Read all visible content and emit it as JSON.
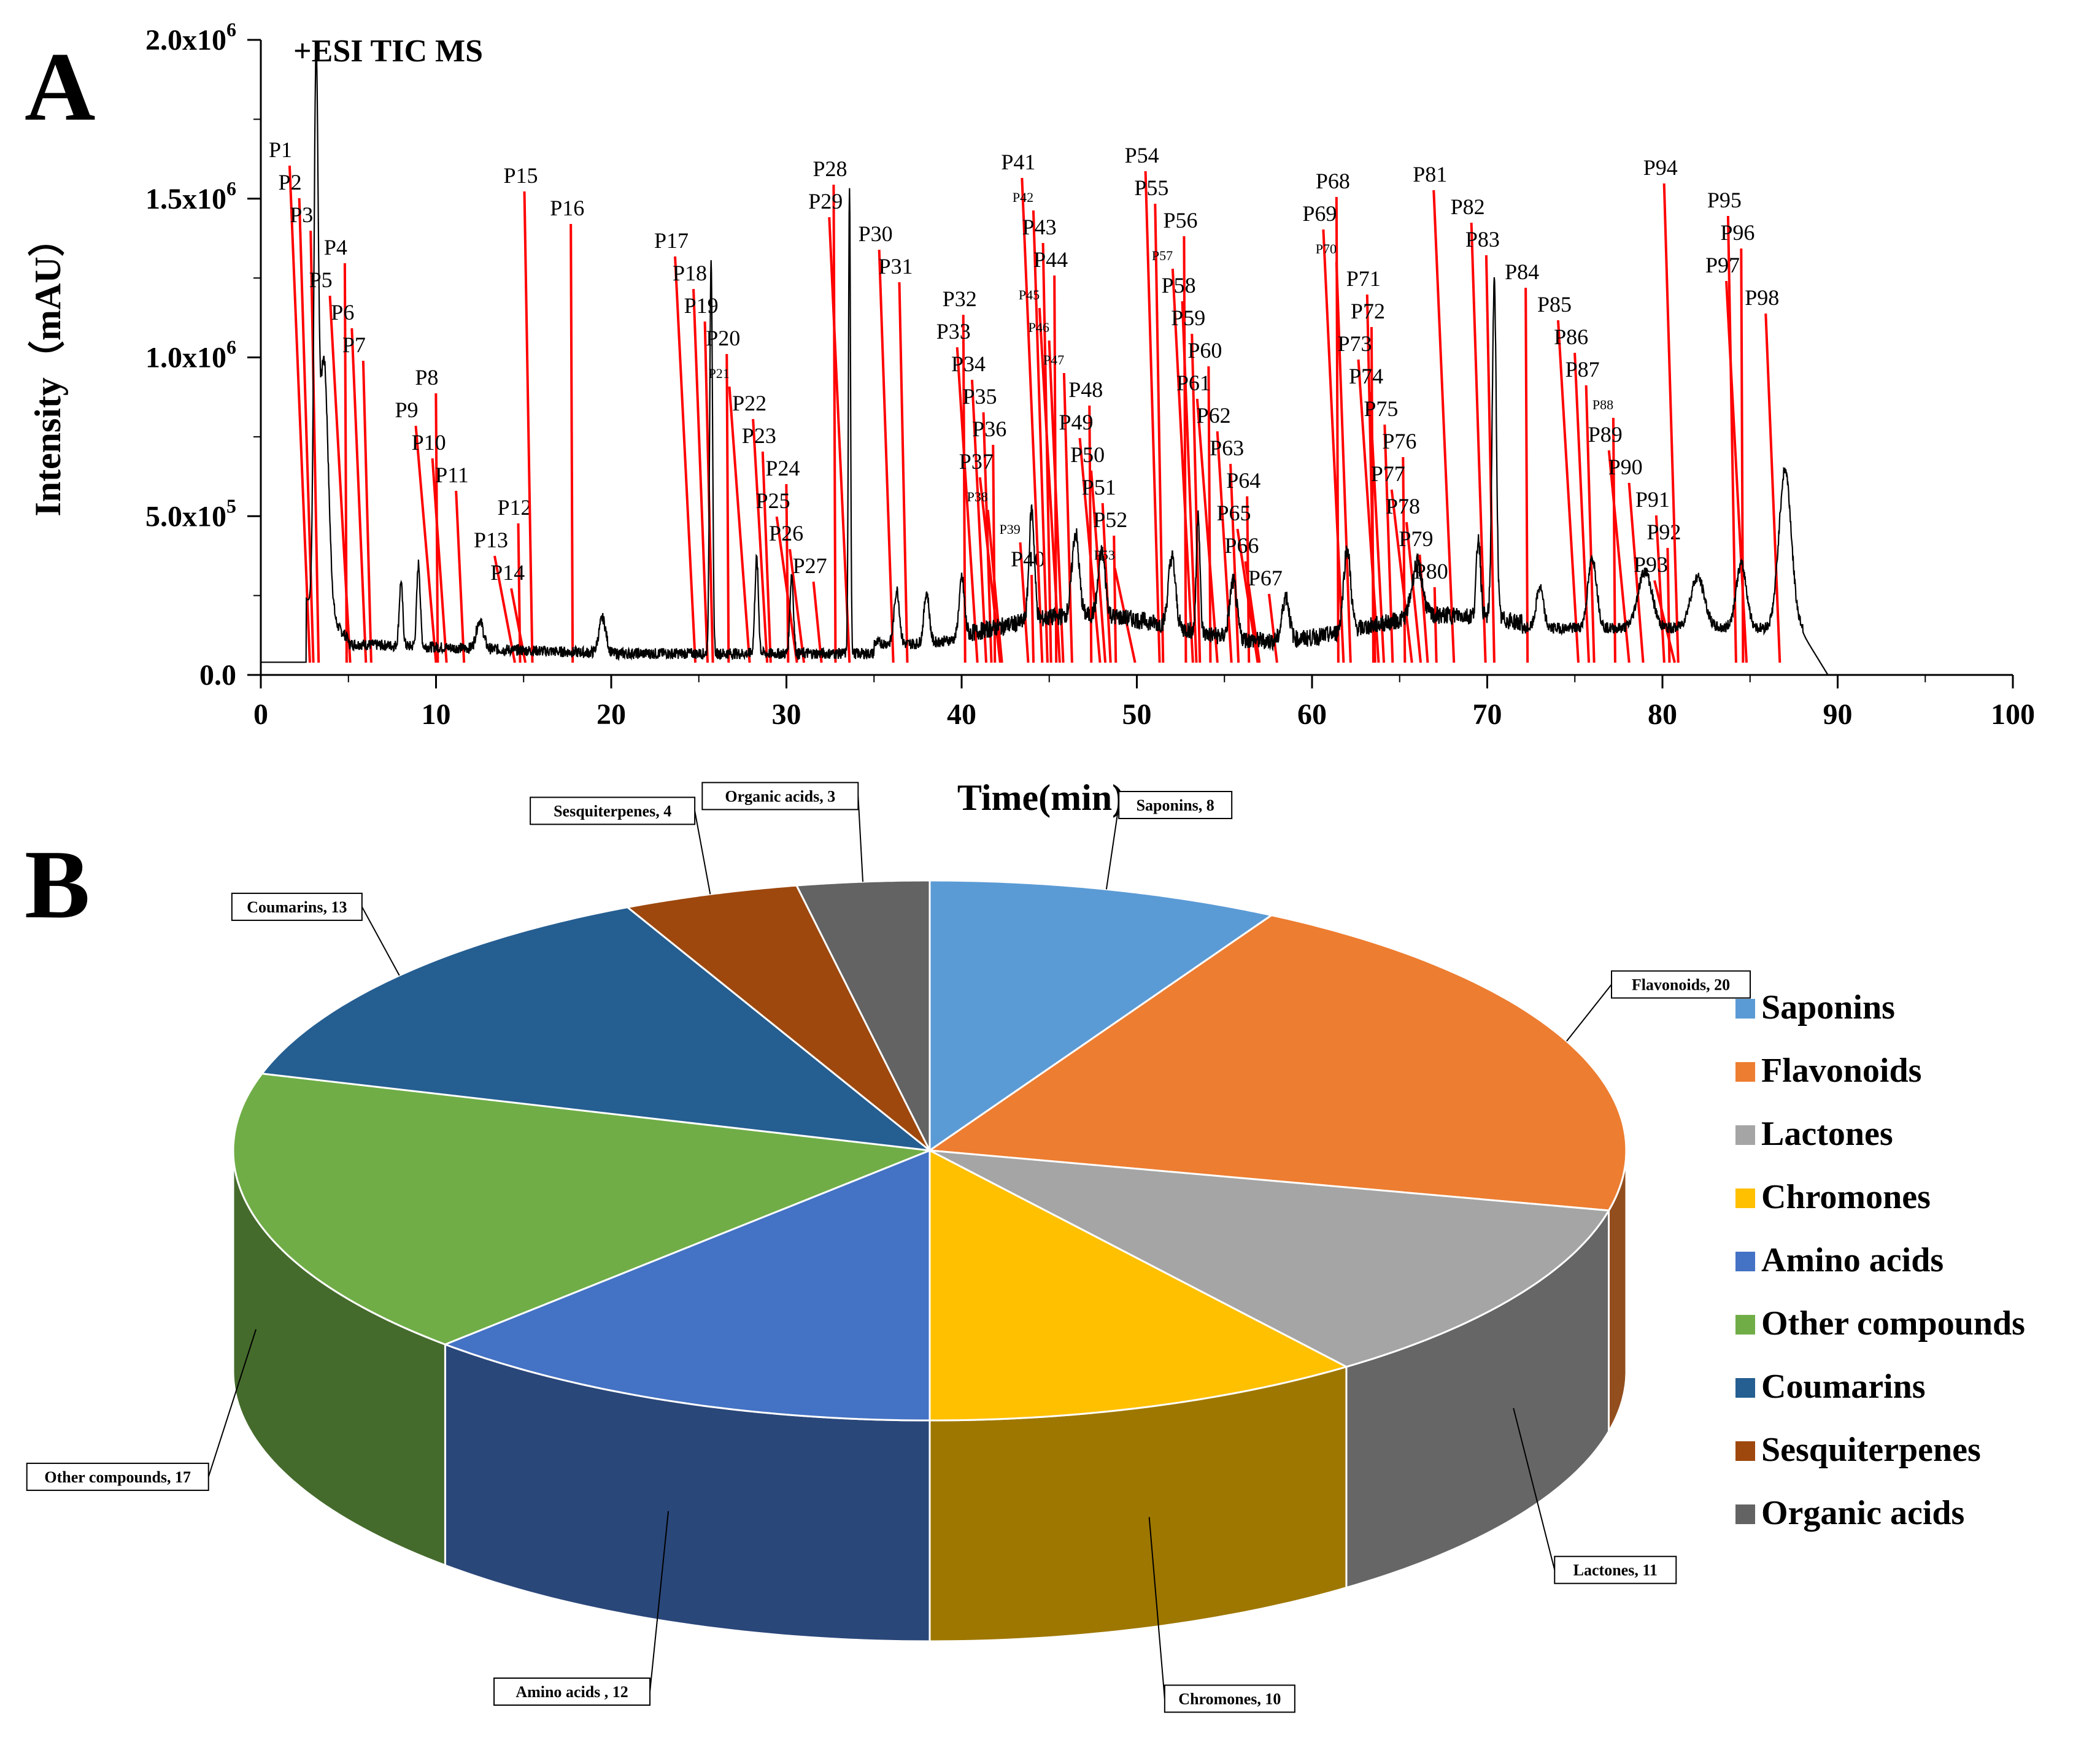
{
  "panels": {
    "a": "A",
    "b": "B"
  },
  "chart_data": [
    {
      "type": "line",
      "annotation": "+ESI TIC MS",
      "xlabel": "Time(min)",
      "ylabel": "Intensity（mAU）",
      "xlim": [
        0,
        100
      ],
      "ylim": [
        0,
        2000000
      ],
      "x_ticks": [
        "0",
        "10",
        "20",
        "30",
        "40",
        "50",
        "60",
        "70",
        "80",
        "90",
        "100"
      ],
      "y_ticks": [
        {
          "value": 0,
          "base": "0.0",
          "exp": ""
        },
        {
          "value": 500000,
          "base": "5.0x10",
          "exp": "5"
        },
        {
          "value": 1000000,
          "base": "1.0x10",
          "exp": "6"
        },
        {
          "value": 1500000,
          "base": "1.5x10",
          "exp": "6"
        },
        {
          "value": 2000000,
          "base": "2.0x10",
          "exp": "6"
        }
      ],
      "peaks": [
        {
          "label": "P1",
          "t": 2.8
        },
        {
          "label": "P2",
          "t": 3.0
        },
        {
          "label": "P3",
          "t": 3.3
        },
        {
          "label": "P4",
          "t": 4.9
        },
        {
          "label": "P5",
          "t": 5.1
        },
        {
          "label": "P6",
          "t": 6.0
        },
        {
          "label": "P7",
          "t": 6.3
        },
        {
          "label": "P8",
          "t": 10.1
        },
        {
          "label": "P9",
          "t": 10.0
        },
        {
          "label": "P10",
          "t": 10.6
        },
        {
          "label": "P11",
          "t": 11.6
        },
        {
          "label": "P12",
          "t": 14.8
        },
        {
          "label": "P13",
          "t": 14.5
        },
        {
          "label": "P14",
          "t": 15.1
        },
        {
          "label": "P15",
          "t": 15.5
        },
        {
          "label": "P16",
          "t": 17.8
        },
        {
          "label": "P17",
          "t": 24.8
        },
        {
          "label": "P18",
          "t": 25.5
        },
        {
          "label": "P19",
          "t": 25.8
        },
        {
          "label": "P20",
          "t": 26.7
        },
        {
          "label": "P21",
          "t": 27.9
        },
        {
          "label": "P22",
          "t": 28.9
        },
        {
          "label": "P23",
          "t": 29.1
        },
        {
          "label": "P24",
          "t": 30.1
        },
        {
          "label": "P25",
          "t": 30.6
        },
        {
          "label": "P26",
          "t": 31.0
        },
        {
          "label": "P27",
          "t": 32.0
        },
        {
          "label": "P28",
          "t": 32.8
        },
        {
          "label": "P29",
          "t": 33.6
        },
        {
          "label": "P30",
          "t": 36.1
        },
        {
          "label": "P31",
          "t": 36.9
        },
        {
          "label": "P32",
          "t": 40.2
        },
        {
          "label": "P33",
          "t": 40.9
        },
        {
          "label": "P34",
          "t": 41.4
        },
        {
          "label": "P35",
          "t": 41.7
        },
        {
          "label": "P36",
          "t": 41.9
        },
        {
          "label": "P37",
          "t": 42.2
        },
        {
          "label": "P38",
          "t": 42.3
        },
        {
          "label": "P39",
          "t": 43.8
        },
        {
          "label": "P40",
          "t": 44.1
        },
        {
          "label": "P41",
          "t": 44.6
        },
        {
          "label": "P42",
          "t": 44.9
        },
        {
          "label": "P43",
          "t": 45.1
        },
        {
          "label": "P44",
          "t": 45.4
        },
        {
          "label": "P45",
          "t": 45.6
        },
        {
          "label": "P46",
          "t": 45.8
        },
        {
          "label": "P47",
          "t": 46.3
        },
        {
          "label": "P48",
          "t": 47.4
        },
        {
          "label": "P49",
          "t": 47.9
        },
        {
          "label": "P50",
          "t": 48.2
        },
        {
          "label": "P51",
          "t": 48.5
        },
        {
          "label": "P52",
          "t": 48.8
        },
        {
          "label": "P53",
          "t": 49.9
        },
        {
          "label": "P54",
          "t": 51.3
        },
        {
          "label": "P55",
          "t": 51.5
        },
        {
          "label": "P56",
          "t": 52.8
        },
        {
          "label": "P57",
          "t": 53.2
        },
        {
          "label": "P58",
          "t": 53.4
        },
        {
          "label": "P59",
          "t": 53.6
        },
        {
          "label": "P60",
          "t": 54.2
        },
        {
          "label": "P61",
          "t": 54.6
        },
        {
          "label": "P62",
          "t": 55.4
        },
        {
          "label": "P63",
          "t": 55.8
        },
        {
          "label": "P64",
          "t": 56.4
        },
        {
          "label": "P65",
          "t": 56.9
        },
        {
          "label": "P66",
          "t": 57.0
        },
        {
          "label": "P67",
          "t": 58.0
        },
        {
          "label": "P68",
          "t": 61.5
        },
        {
          "label": "P69",
          "t": 61.8
        },
        {
          "label": "P70",
          "t": 62.2
        },
        {
          "label": "P71",
          "t": 63.6
        },
        {
          "label": "P72",
          "t": 63.5
        },
        {
          "label": "P73",
          "t": 63.8
        },
        {
          "label": "P74",
          "t": 64.1
        },
        {
          "label": "P75",
          "t": 64.6
        },
        {
          "label": "P76",
          "t": 65.3
        },
        {
          "label": "P77",
          "t": 65.7
        },
        {
          "label": "P78",
          "t": 66.2
        },
        {
          "label": "P79",
          "t": 66.6
        },
        {
          "label": "P80",
          "t": 67.1
        },
        {
          "label": "P81",
          "t": 68.1
        },
        {
          "label": "P82",
          "t": 69.9
        },
        {
          "label": "P83",
          "t": 70.4
        },
        {
          "label": "P84",
          "t": 72.3
        },
        {
          "label": "P85",
          "t": 75.2
        },
        {
          "label": "P86",
          "t": 75.8
        },
        {
          "label": "P87",
          "t": 76.1
        },
        {
          "label": "P88",
          "t": 77.3
        },
        {
          "label": "P89",
          "t": 78.1
        },
        {
          "label": "P90",
          "t": 78.9
        },
        {
          "label": "P91",
          "t": 80.1
        },
        {
          "label": "P92",
          "t": 80.4
        },
        {
          "label": "P93",
          "t": 80.7
        },
        {
          "label": "P94",
          "t": 80.9
        },
        {
          "label": "P95",
          "t": 84.2
        },
        {
          "label": "P96",
          "t": 84.6
        },
        {
          "label": "P97",
          "t": 84.8
        },
        {
          "label": "P98",
          "t": 86.7
        }
      ]
    },
    {
      "type": "pie",
      "title": "",
      "slices": [
        {
          "name": "Saponins",
          "value": 8,
          "label": "Saponins, 8",
          "color": "#5B9BD5"
        },
        {
          "name": "Flavonoids",
          "value": 20,
          "label": "Flavonoids, 20",
          "color": "#ED7D31"
        },
        {
          "name": "Lactones",
          "value": 11,
          "label": "Lactones, 11",
          "color": "#A5A5A5"
        },
        {
          "name": "Chromones",
          "value": 10,
          "label": "Chromones, 10",
          "color": "#FFC000"
        },
        {
          "name": "Amino acids",
          "value": 12,
          "label": "Amino acids , 12",
          "color": "#4472C4"
        },
        {
          "name": "Other compounds",
          "value": 17,
          "label": "Other compounds, 17",
          "color": "#70AD47"
        },
        {
          "name": "Coumarins",
          "value": 13,
          "label": "Coumarins, 13",
          "color": "#255E91"
        },
        {
          "name": "Sesquiterpenes",
          "value": 4,
          "label": "Sesquiterpenes, 4",
          "color": "#9E480E"
        },
        {
          "name": "Organic acids",
          "value": 3,
          "label": "Organic acids, 3",
          "color": "#636363"
        }
      ],
      "legend": [
        "Saponins",
        "Flavonoids",
        "Lactones",
        "Chromones",
        "Amino acids",
        "Other compounds",
        "Coumarins",
        "Sesquiterpenes",
        "Organic acids"
      ],
      "legend_position": "right"
    }
  ]
}
